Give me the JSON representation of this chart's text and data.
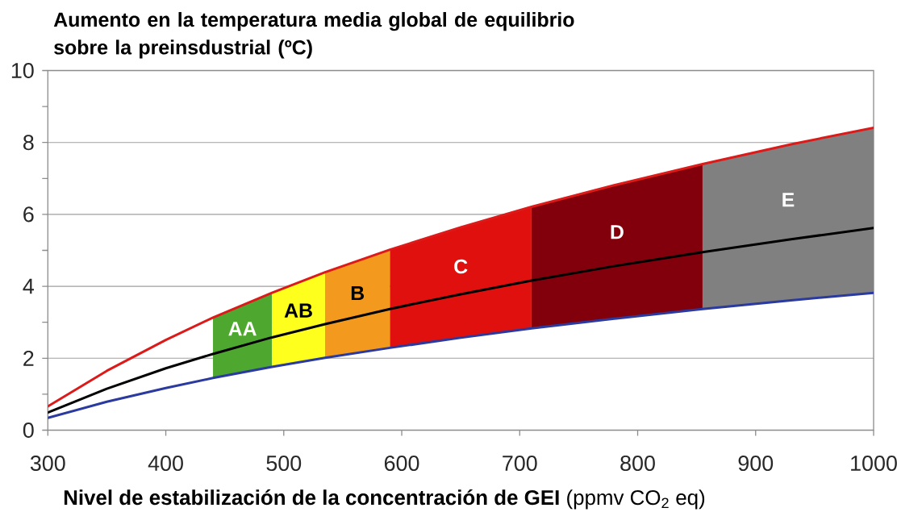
{
  "chart_data": {
    "type": "line",
    "ylabel": "Aumento en la temperatura media global de equilibrio sobre la preinsdustrial (ºC)",
    "xlabel": "**Nivel de estabilización de la concentración de GEI** (ppmv CO$_{2}$ eq)",
    "xlim": [
      300,
      1000
    ],
    "xticks": [
      300,
      400,
      500,
      600,
      700,
      800,
      900,
      1000
    ],
    "ylim": [
      0,
      10
    ],
    "yticks": [
      0,
      {
        "value": 1,
        "label": null
      },
      2,
      {
        "value": 3,
        "label": null
      },
      4,
      {
        "value": 5,
        "label": null
      },
      6,
      {
        "value": 7,
        "label": null
      },
      8,
      {
        "value": 9,
        "label": null
      },
      10
    ],
    "grid": "y",
    "x": [
      300,
      350,
      400,
      440,
      490,
      535,
      590,
      650,
      710,
      780,
      855,
      930,
      1000
    ],
    "series": [
      {
        "name": "AA",
        "type": "area",
        "color": "#4ea72e",
        "x": [
          440,
          490
        ],
        "values": [
          3.13,
          3.82
        ]
      },
      {
        "name": "AB",
        "type": "area",
        "color": "#ffff1e",
        "x": [
          490,
          535
        ],
        "values": [
          3.82,
          4.39
        ]
      },
      {
        "name": "B",
        "type": "area",
        "color": "#f39a1e",
        "x": [
          535,
          590
        ],
        "values": [
          4.39,
          5.02
        ]
      },
      {
        "name": "C",
        "type": "area",
        "color": "#e0100f",
        "x": [
          590,
          650,
          710
        ],
        "values": [
          5.02,
          5.64,
          6.21
        ]
      },
      {
        "name": "D",
        "type": "area",
        "color": "#82000b",
        "x": [
          710,
          780,
          855
        ],
        "values": [
          6.21,
          6.81,
          7.4
        ]
      },
      {
        "name": "E",
        "type": "area",
        "color": "#808080",
        "x": [
          855,
          930,
          1000
        ],
        "values": [
          7.4,
          7.95,
          8.41
        ]
      },
      {
        "color": "#dd1a1a",
        "values": [
          0.66,
          1.65,
          2.51,
          3.13,
          3.82,
          4.39,
          5.02,
          5.64,
          6.21,
          6.81,
          7.4,
          7.95,
          8.41
        ]
      },
      {
        "color": "#000000",
        "values": [
          0.49,
          1.15,
          1.72,
          2.12,
          2.58,
          2.95,
          3.37,
          3.78,
          4.16,
          4.56,
          4.95,
          5.31,
          5.62
        ]
      },
      {
        "color": "#2b3a9e",
        "values": [
          0.34,
          0.79,
          1.17,
          1.45,
          1.76,
          2.01,
          2.29,
          2.57,
          2.83,
          3.1,
          3.37,
          3.61,
          3.82
        ]
      }
    ]
  }
}
